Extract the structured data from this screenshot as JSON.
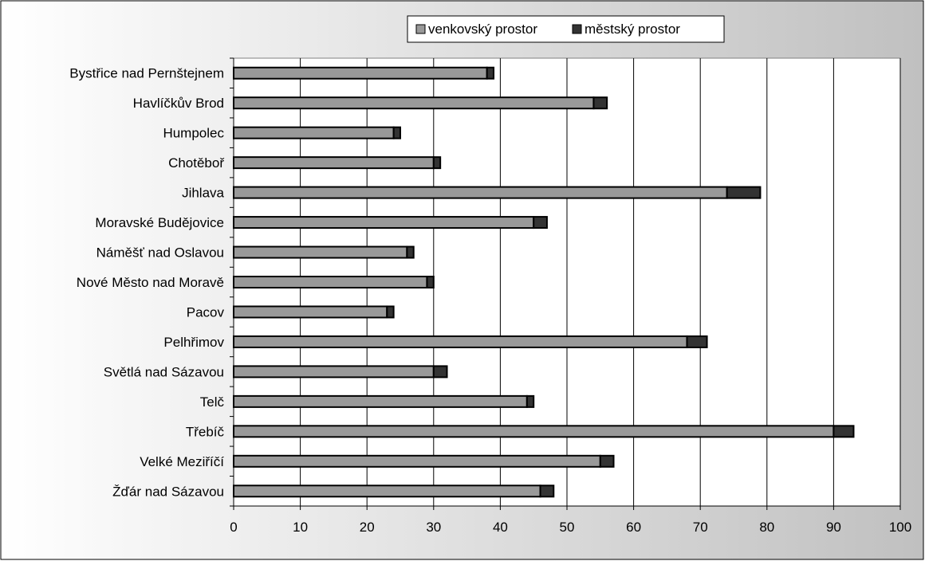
{
  "chart_data": {
    "type": "bar",
    "orientation": "horizontal",
    "stacked": true,
    "title": "",
    "xlabel": "",
    "ylabel": "",
    "xlim": [
      0,
      100
    ],
    "x_ticks": [
      0,
      10,
      20,
      30,
      40,
      50,
      60,
      70,
      80,
      90,
      100
    ],
    "grid": true,
    "legend_position": "top",
    "categories": [
      "Bystřice nad Pernštejnem",
      "Havlíčkův Brod",
      "Humpolec",
      "Chotěboř",
      "Jihlava",
      "Moravské Budějovice",
      "Náměšť nad Oslavou",
      "Nové Město nad Moravě",
      "Pacov",
      "Pelhřimov",
      "Světlá nad Sázavou",
      "Telč",
      "Třebíč",
      "Velké Meziříčí",
      "Žďár nad Sázavou"
    ],
    "series": [
      {
        "name": "venkovský prostor",
        "color": "#999999",
        "values": [
          38,
          54,
          24,
          30,
          74,
          45,
          26,
          29,
          23,
          68,
          30,
          44,
          90,
          55,
          46
        ]
      },
      {
        "name": "městský prostor",
        "color": "#333333",
        "values": [
          1,
          2,
          1,
          1,
          5,
          2,
          1,
          1,
          1,
          3,
          2,
          1,
          3,
          2,
          2
        ]
      }
    ]
  },
  "colors": {
    "background_gradient_start": "#ffffff",
    "background_gradient_end": "#c0c0c0",
    "plot_background": "#ffffff",
    "gridline": "#000000",
    "bar_outline": "#000000"
  }
}
